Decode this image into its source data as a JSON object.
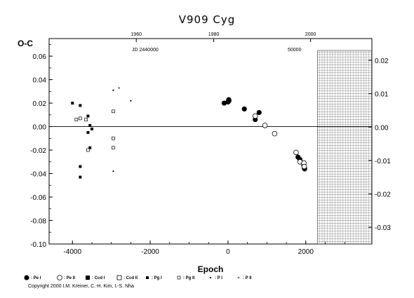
{
  "chart_data": {
    "type": "scatter",
    "title": "V909  Cyg",
    "ylabel": "O-C",
    "xlabel": "Epoch",
    "jd_label": "JD 2440000",
    "jd_label2": "50000",
    "xlim": [
      -4600,
      3700
    ],
    "ylim": [
      -0.1,
      0.075
    ],
    "right_ylim": [
      -0.035,
      0.0265
    ],
    "x_ticks": [
      "-4000",
      "-2000",
      "0",
      "2000"
    ],
    "y_ticks": [
      "0.06",
      "0.04",
      "0.02",
      "0.00",
      "-0.02",
      "-0.04",
      "-0.06",
      "-0.08",
      "-0.10"
    ],
    "right_ticks": [
      "0.02",
      "0.01",
      "0.00",
      "-0.01",
      "-0.02",
      "-0.03"
    ],
    "top_ticks": [
      "1960",
      "1980",
      "2000"
    ],
    "future_region_start": 2300,
    "series": [
      {
        "name": "Pe I",
        "symbol": "filled-circle",
        "points": [
          [
            -100,
            0.02
          ],
          [
            0,
            0.021
          ],
          [
            10,
            0.022
          ],
          [
            20,
            0.023
          ],
          [
            25,
            0.022
          ],
          [
            420,
            0.015
          ],
          [
            700,
            0.006
          ],
          [
            800,
            0.012
          ],
          [
            1800,
            -0.026
          ],
          [
            1850,
            -0.028
          ],
          [
            1950,
            -0.033
          ],
          [
            1960,
            -0.035
          ],
          [
            1970,
            -0.036
          ]
        ]
      },
      {
        "name": "Pe II",
        "symbol": "open-circle",
        "points": [
          [
            700,
            0.009
          ],
          [
            950,
            0.001
          ],
          [
            1200,
            -0.006
          ],
          [
            1750,
            -0.022
          ],
          [
            1850,
            -0.03
          ],
          [
            1950,
            -0.031
          ],
          [
            1960,
            -0.034
          ]
        ]
      },
      {
        "name": "Ccd I",
        "symbol": "filled-square",
        "points": []
      },
      {
        "name": "Ccd II",
        "symbol": "open-square",
        "points": []
      },
      {
        "name": "Pg I",
        "symbol": "small-filled-square",
        "points": [
          [
            -4000,
            0.02
          ],
          [
            -3800,
            0.018
          ],
          [
            -3800,
            -0.034
          ],
          [
            -3800,
            -0.043
          ],
          [
            -3600,
            0.009
          ],
          [
            -3600,
            -0.005
          ],
          [
            -3550,
            0.001
          ],
          [
            -3550,
            -0.018
          ],
          [
            -3500,
            -0.002
          ]
        ]
      },
      {
        "name": "Pg II",
        "symbol": "small-open-square",
        "points": [
          [
            -3900,
            0.006
          ],
          [
            -3800,
            0.007
          ],
          [
            -3650,
            0.006
          ],
          [
            -3600,
            -0.02
          ],
          [
            -2950,
            0.013
          ],
          [
            -2950,
            -0.01
          ],
          [
            -2950,
            -0.018
          ]
        ]
      },
      {
        "name": "P I",
        "symbol": "dot",
        "points": [
          [
            -2950,
            0.031
          ],
          [
            -2950,
            -0.038
          ],
          [
            -2500,
            0.022
          ]
        ]
      },
      {
        "name": "P II",
        "symbol": "plus",
        "points": [
          [
            -2800,
            0.033
          ]
        ]
      }
    ]
  },
  "copyright": "Copyright 2000 I.M. Kreiner, C.-H. Kim, I.-S. Nha"
}
